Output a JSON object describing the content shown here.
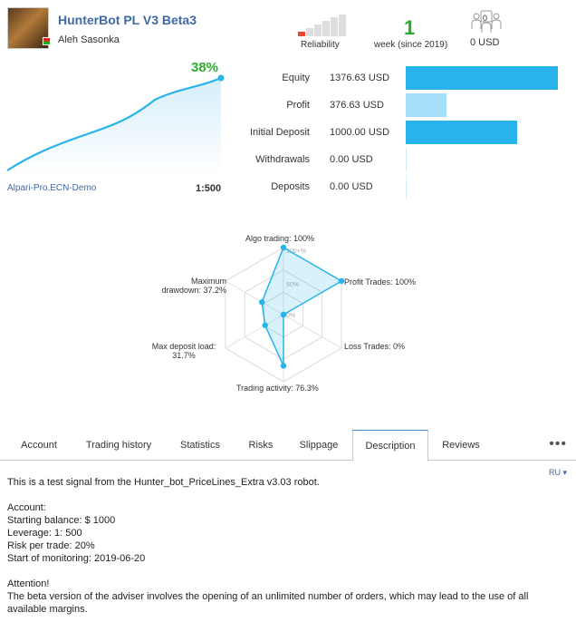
{
  "header": {
    "title": "HunterBot PL V3 Beta3",
    "author": "Aleh Sasonka",
    "reliability_label": "Reliability",
    "weeks_value": "1",
    "weeks_label": "week (since 2019)",
    "subscribers_count": "0",
    "price": "0 USD",
    "colors": {
      "title": "#3f6aa6",
      "growth": "#2faa2f",
      "reliability_low": "#e8462f"
    },
    "icons": [
      "subscribers-icon",
      "reliability-bars-icon"
    ]
  },
  "growth": {
    "percent": "38%",
    "broker": "Alpari-Pro.ECN-Demo",
    "leverage": "1:500"
  },
  "stats": [
    {
      "label": "Equity",
      "value": "1376.63 USD",
      "level": 1.0,
      "color": "#28b4ea"
    },
    {
      "label": "Profit",
      "value": "376.63 USD",
      "level": 0.27,
      "color": "#a5def7"
    },
    {
      "label": "Initial Deposit",
      "value": "1000.00 USD",
      "level": 0.73,
      "color": "#28b4ea"
    },
    {
      "label": "Withdrawals",
      "value": "0.00 USD",
      "level": 0,
      "color": "#28b4ea"
    },
    {
      "label": "Deposits",
      "value": "0.00 USD",
      "level": 0,
      "color": "#28b4ea"
    }
  ],
  "radar": {
    "ring_labels": [
      "100+%",
      "50%",
      "0%"
    ],
    "axes": [
      {
        "label": "Algo trading: 100%",
        "value": 1.0
      },
      {
        "label": "Profit Trades: 100%",
        "value": 1.0
      },
      {
        "label": "Loss Trades: 0%",
        "value": 0.0
      },
      {
        "label": "Trading activity: 76.3%",
        "value": 0.763
      },
      {
        "label": "Max deposit load: 31.7%",
        "value": 0.317
      },
      {
        "label": "Maximum drawdown: 37.2%",
        "value": 0.372
      }
    ]
  },
  "tabs": [
    {
      "label": "Account"
    },
    {
      "label": "Trading history"
    },
    {
      "label": "Statistics"
    },
    {
      "label": "Risks"
    },
    {
      "label": "Slippage"
    },
    {
      "label": "Description",
      "active": true
    },
    {
      "label": "Reviews"
    }
  ],
  "more_label": "•••",
  "language": "RU ▾",
  "description": {
    "intro": "This is a test signal from the Hunter_bot_PriceLines_Extra v3.03 robot.",
    "account_header": "Account:",
    "starting_balance": "Starting balance: $ 1000",
    "leverage": "Leverage: 1: 500",
    "risk": "Risk per trade: 20%",
    "start": "Start of monitoring: 2019-06-20",
    "attention_header": "Attention!",
    "attention_text": "The beta version of the adviser involves the opening of an unlimited number of orders, which may lead to the use of all available margins."
  }
}
